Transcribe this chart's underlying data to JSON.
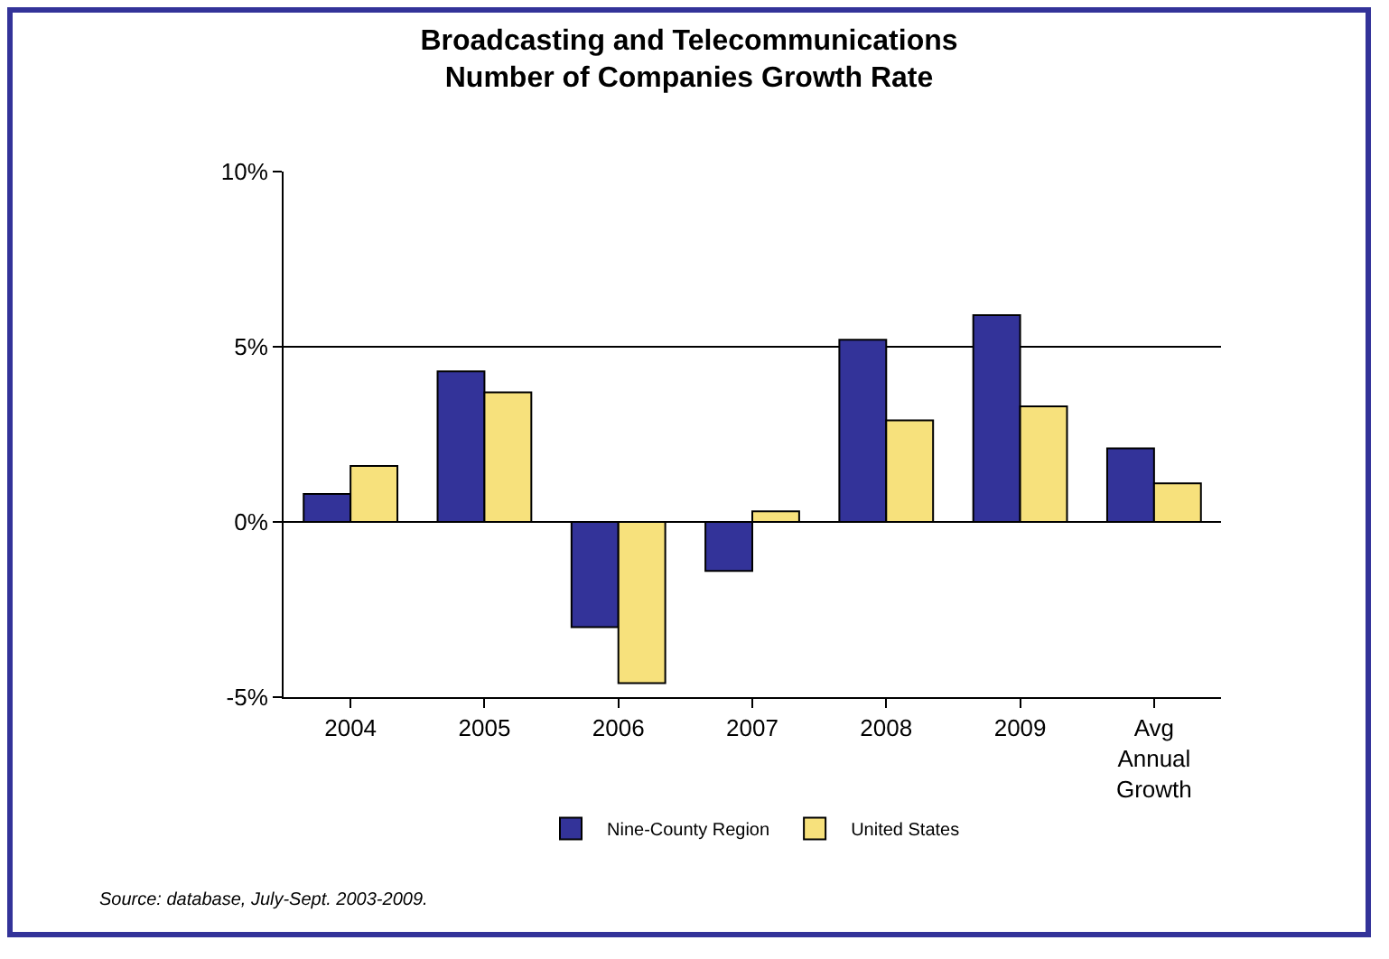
{
  "chart_data": {
    "type": "bar",
    "title": "Broadcasting and Telecommunications\nNumber of Companies Growth Rate",
    "categories": [
      "2004",
      "2005",
      "2006",
      "2007",
      "2008",
      "2009",
      "Avg Annual Growth"
    ],
    "series": [
      {
        "name": "Nine-County Region",
        "color": "#333399",
        "values": [
          0.8,
          4.3,
          -3.0,
          -1.4,
          5.2,
          5.9,
          2.1
        ]
      },
      {
        "name": "United States",
        "color": "#f7e17c",
        "values": [
          1.6,
          3.7,
          -4.6,
          0.3,
          2.9,
          3.3,
          1.1
        ]
      }
    ],
    "ylim": [
      -5,
      10
    ],
    "yticks": [
      {
        "value": -5,
        "label": "-5%"
      },
      {
        "value": 0,
        "label": "0%"
      },
      {
        "value": 5,
        "label": "5%"
      },
      {
        "value": 10,
        "label": "10%"
      }
    ],
    "grid": "y",
    "legend": "bottom",
    "annotations": [
      "Source: database, July-Sept. 2003-2009."
    ]
  }
}
